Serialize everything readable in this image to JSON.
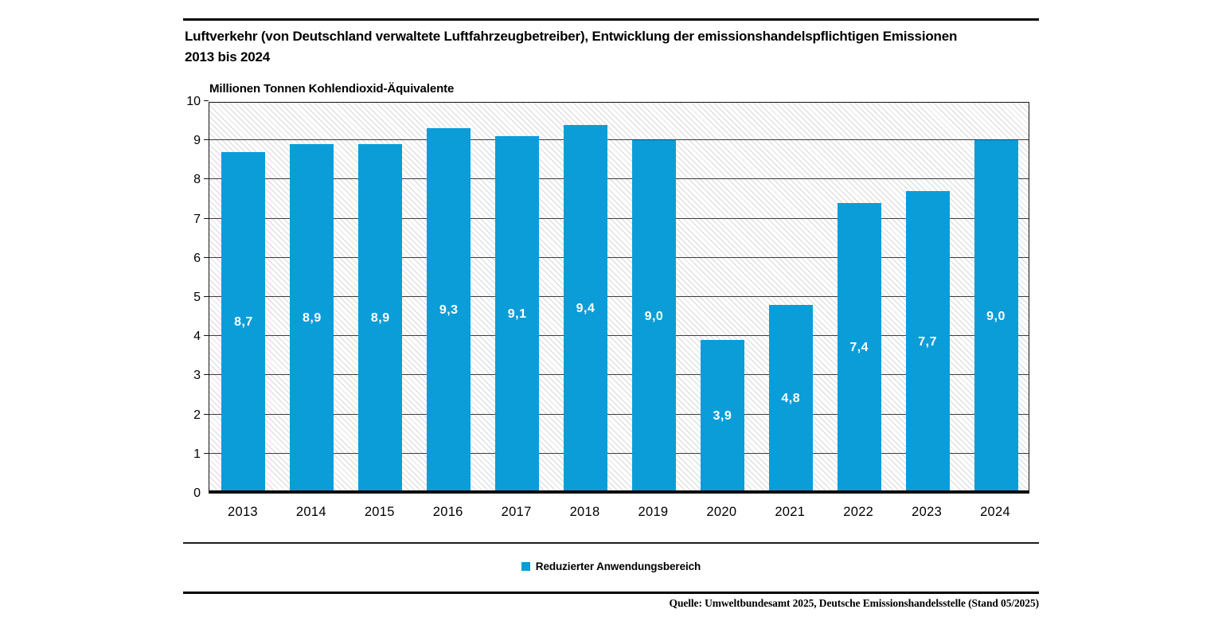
{
  "page": {
    "title_line1": "Luftverkehr (von Deutschland verwaltete Luftfahrzeugbetreiber), Entwicklung der emissionshandelspflichtigen Emissionen",
    "title_line2": "2013 bis 2024",
    "unit_label": "Millionen Tonnen Kohlendioxid-Äquivalente",
    "source": "Quelle: Umweltbundesamt 2025, Deutsche Emissionshandelsstelle (Stand 05/2025)"
  },
  "legend": {
    "items": [
      {
        "label": "Reduzierter Anwendungsbereich",
        "color": "#0b9dd8"
      }
    ]
  },
  "chart_data": {
    "type": "bar",
    "title": "Luftverkehr (von Deutschland verwaltete Luftfahrzeugbetreiber), Entwicklung der emissionshandelspflichtigen Emissionen 2013 bis 2024",
    "xlabel": "",
    "ylabel": "Millionen Tonnen Kohlendioxid-Äquivalente",
    "categories": [
      "2013",
      "2014",
      "2015",
      "2016",
      "2017",
      "2018",
      "2019",
      "2020",
      "2021",
      "2022",
      "2023",
      "2024"
    ],
    "values": [
      8.7,
      8.9,
      8.9,
      9.3,
      9.1,
      9.4,
      9.0,
      3.9,
      4.8,
      7.4,
      7.7,
      9.0
    ],
    "value_labels": [
      "8,7",
      "8,9",
      "8,9",
      "9,3",
      "9,1",
      "9,4",
      "9,0",
      "3,9",
      "4,8",
      "7,4",
      "7,7",
      "9,0"
    ],
    "series_name": "Reduzierter Anwendungsbereich",
    "ylim": [
      0,
      10
    ],
    "yticks": [
      0,
      1,
      2,
      3,
      4,
      5,
      6,
      7,
      8,
      9,
      10
    ],
    "grid": true,
    "legend_position": "bottom",
    "bar_color": "#0b9dd8",
    "bar_label_color": "#ffffff",
    "plot_hatch_color": "#d8d8d8",
    "gridline_color": "#3d3d3d",
    "source": "Quelle: Umweltbundesamt 2025, Deutsche Emissionshandelsstelle (Stand 05/2025)"
  }
}
